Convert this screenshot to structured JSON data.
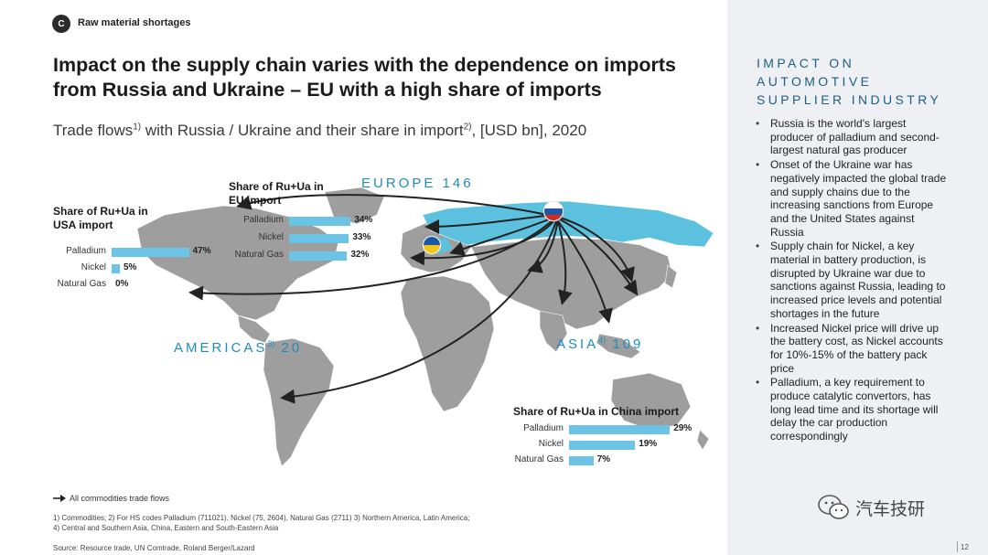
{
  "header": {
    "badge": "C",
    "section": "Raw material shortages",
    "title": "Impact on the supply chain varies with the dependence on imports from Russia and Ukraine – EU with a high share of imports",
    "subtitle_main": "Trade flows",
    "subtitle_sup1": "1)",
    "subtitle_mid": " with Russia / Ukraine and their share in import",
    "subtitle_sup2": "2)",
    "subtitle_end": ", [USD bn], 2020"
  },
  "regions": {
    "europe": "EUROPE 146",
    "americas": "AMERICAS",
    "americas_sup": "3)",
    "americas_val": " 20",
    "asia": "ASIA",
    "asia_sup": "4)",
    "asia_val": " 109"
  },
  "panels": {
    "usa": {
      "title": "Share of Ru+Ua in USA import",
      "items": [
        {
          "label": "Palladium",
          "value": "47%",
          "pct": 47
        },
        {
          "label": "Nickel",
          "value": "5%",
          "pct": 5
        },
        {
          "label": "Natural Gas",
          "value": "0%",
          "pct": 0
        }
      ]
    },
    "eu": {
      "title": "Share of Ru+Ua in EU import",
      "items": [
        {
          "label": "Palladium",
          "value": "34%",
          "pct": 34
        },
        {
          "label": "Nickel",
          "value": "33%",
          "pct": 33
        },
        {
          "label": "Natural Gas",
          "value": "32%",
          "pct": 32
        }
      ]
    },
    "china": {
      "title": "Share of Ru+Ua in China import",
      "items": [
        {
          "label": "Palladium",
          "value": "29%",
          "pct": 29
        },
        {
          "label": "Nickel",
          "value": "19%",
          "pct": 19
        },
        {
          "label": "Natural Gas",
          "value": "7%",
          "pct": 7
        }
      ]
    }
  },
  "side": {
    "title_lines": [
      "IMPACT ON",
      "AUTOMOTIVE",
      "SUPPLIER INDUSTRY"
    ],
    "bullets": [
      "Russia is the world's largest producer of palladium and second-largest  natural gas producer",
      "Onset of the Ukraine war has negatively impacted the global trade and supply chains due to the increasing sanctions from Europe and the United States against Russia",
      "Supply chain for Nickel, a key material in battery production, is disrupted by Ukraine war due to sanctions against Russia, leading to increased price levels and potential shortages in the future",
      "Increased Nickel price will drive up the battery cost, as Nickel accounts for 10%-15% of the battery pack price",
      "Palladium, a key requirement to produce catalytic convertors, has long lead time and its shortage will delay the car production correspondingly"
    ]
  },
  "legend": "All commodities trade flows",
  "footnotes": {
    "line1": "1) Commodities; 2) For HS codes Palladium (711021), Nickel (75, 2604), Natural Gas (2711) 3) Northern America, Latin America;",
    "line2": "4) Central and Southern Asia, China, Eastern and South-Eastern Asia",
    "source": "Source: Resource trade, UN Comtrade, Roland Berger/Lazard"
  },
  "page_number": "12",
  "watermark": "汽车技研",
  "colors": {
    "accent": "#1d8cc0",
    "bar": "#6bc4e6",
    "russia_fill": "#5cc1df",
    "land": "#9a9a9a"
  }
}
